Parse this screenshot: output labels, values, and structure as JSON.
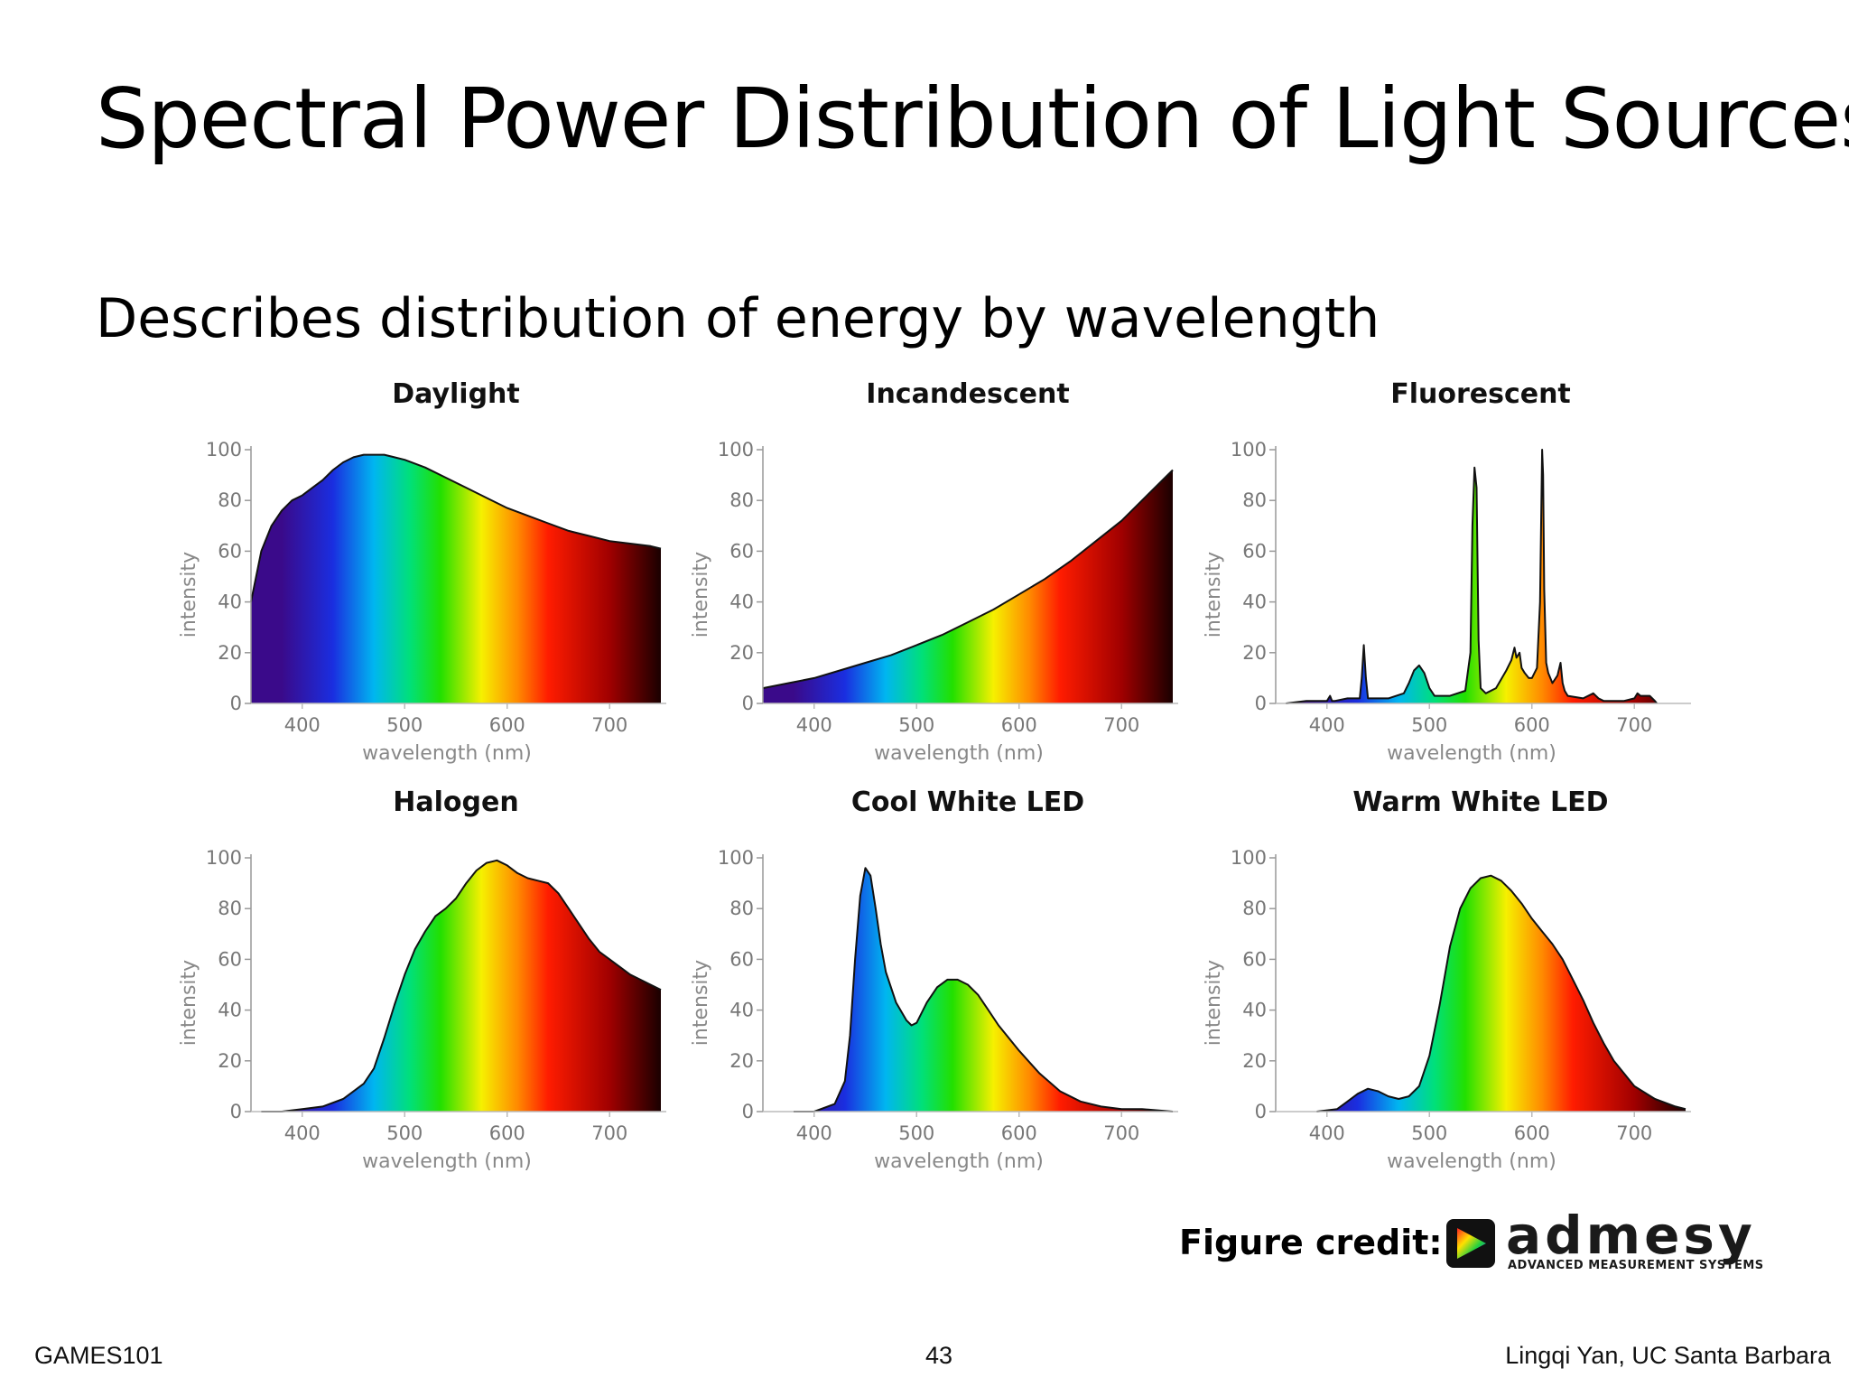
{
  "slide": {
    "title": "Spectral Power Distribution of Light Sources",
    "subtitle": "Describes distribution of energy by wavelength",
    "credit_label": "Figure credit:",
    "logo": {
      "word": "admesy",
      "tagline": "ADVANCED MEASUREMENT SYSTEMS"
    },
    "footer": {
      "left": "GAMES101",
      "center": "43",
      "right": "Lingqi Yan, UC Santa Barbara"
    }
  },
  "colors": {
    "spectrum": [
      "#3a0a8a",
      "#1a2ee0",
      "#00b6f0",
      "#00e07a",
      "#22e000",
      "#f6f000",
      "#ff8a00",
      "#ff1c00",
      "#a00000",
      "#1a0000"
    ],
    "outline": "#111111"
  },
  "chart_data": [
    {
      "type": "area",
      "title": "Daylight",
      "xlabel": "wavelength (nm)",
      "ylabel": "intensity",
      "xlim": [
        350,
        750
      ],
      "ylim": [
        0,
        100
      ],
      "xticks": [
        400,
        500,
        600,
        700
      ],
      "yticks": [
        0,
        20,
        40,
        60,
        80,
        100
      ],
      "x": [
        350,
        360,
        370,
        380,
        390,
        400,
        410,
        420,
        430,
        440,
        450,
        460,
        470,
        480,
        490,
        500,
        520,
        540,
        560,
        580,
        600,
        620,
        640,
        660,
        680,
        700,
        720,
        740,
        750
      ],
      "y": [
        40,
        60,
        70,
        76,
        80,
        82,
        85,
        88,
        92,
        95,
        97,
        98,
        98,
        98,
        97,
        96,
        93,
        89,
        85,
        81,
        77,
        74,
        71,
        68,
        66,
        64,
        63,
        62,
        61
      ]
    },
    {
      "type": "area",
      "title": "Incandescent",
      "xlabel": "wavelength (nm)",
      "ylabel": "intensity",
      "xlim": [
        350,
        750
      ],
      "ylim": [
        0,
        100
      ],
      "xticks": [
        400,
        500,
        600,
        700
      ],
      "yticks": [
        0,
        20,
        40,
        60,
        80,
        100
      ],
      "x": [
        350,
        375,
        400,
        425,
        450,
        475,
        500,
        525,
        550,
        575,
        600,
        625,
        650,
        675,
        700,
        725,
        750
      ],
      "y": [
        6,
        8,
        10,
        13,
        16,
        19,
        23,
        27,
        32,
        37,
        43,
        49,
        56,
        64,
        72,
        82,
        92
      ]
    },
    {
      "type": "area",
      "title": "Fluorescent",
      "xlabel": "wavelength (nm)",
      "ylabel": "intensity",
      "xlim": [
        350,
        750
      ],
      "ylim": [
        0,
        100
      ],
      "xticks": [
        400,
        500,
        600,
        700
      ],
      "yticks": [
        0,
        20,
        40,
        60,
        80,
        100
      ],
      "x": [
        360,
        380,
        400,
        403,
        405,
        408,
        420,
        432,
        434,
        436,
        438,
        440,
        460,
        475,
        480,
        485,
        490,
        495,
        500,
        505,
        520,
        535,
        540,
        542,
        544,
        546,
        548,
        550,
        555,
        565,
        575,
        580,
        583,
        585,
        588,
        590,
        593,
        597,
        600,
        605,
        608,
        610,
        611,
        612,
        614,
        616,
        620,
        625,
        628,
        630,
        632,
        635,
        650,
        660,
        665,
        670,
        690,
        700,
        703,
        706,
        710,
        715,
        720,
        722
      ],
      "y": [
        0,
        1,
        1,
        3,
        1,
        1,
        2,
        2,
        10,
        23,
        10,
        2,
        2,
        4,
        8,
        13,
        15,
        12,
        6,
        3,
        3,
        5,
        20,
        70,
        93,
        85,
        25,
        6,
        4,
        6,
        13,
        17,
        22,
        18,
        20,
        14,
        12,
        10,
        10,
        14,
        40,
        100,
        90,
        45,
        16,
        12,
        8,
        11,
        16,
        8,
        5,
        3,
        2,
        4,
        2,
        1,
        1,
        2,
        4,
        3,
        3,
        3,
        1,
        0
      ]
    },
    {
      "type": "area",
      "title": "Halogen",
      "xlabel": "wavelength (nm)",
      "ylabel": "intensity",
      "xlim": [
        350,
        750
      ],
      "ylim": [
        0,
        100
      ],
      "xticks": [
        400,
        500,
        600,
        700
      ],
      "yticks": [
        0,
        20,
        40,
        60,
        80,
        100
      ],
      "x": [
        360,
        380,
        400,
        420,
        440,
        460,
        470,
        480,
        490,
        500,
        510,
        520,
        530,
        540,
        550,
        560,
        570,
        580,
        590,
        600,
        610,
        620,
        630,
        640,
        650,
        660,
        670,
        680,
        690,
        700,
        710,
        720,
        730,
        740,
        750
      ],
      "y": [
        0,
        0,
        1,
        2,
        5,
        11,
        17,
        29,
        42,
        54,
        64,
        71,
        77,
        80,
        84,
        90,
        95,
        98,
        99,
        97,
        94,
        92,
        91,
        90,
        86,
        80,
        74,
        68,
        63,
        60,
        57,
        54,
        52,
        50,
        48
      ]
    },
    {
      "type": "area",
      "title": "Cool White LED",
      "xlabel": "wavelength (nm)",
      "ylabel": "intensity",
      "xlim": [
        350,
        750
      ],
      "ylim": [
        0,
        100
      ],
      "xticks": [
        400,
        500,
        600,
        700
      ],
      "yticks": [
        0,
        20,
        40,
        60,
        80,
        100
      ],
      "x": [
        380,
        400,
        420,
        430,
        435,
        440,
        445,
        450,
        455,
        460,
        465,
        470,
        480,
        490,
        495,
        500,
        510,
        520,
        530,
        540,
        550,
        560,
        570,
        580,
        600,
        620,
        640,
        660,
        680,
        700,
        720,
        750
      ],
      "y": [
        0,
        0,
        3,
        12,
        30,
        60,
        85,
        96,
        93,
        80,
        66,
        55,
        43,
        36,
        34,
        35,
        43,
        49,
        52,
        52,
        50,
        46,
        40,
        34,
        24,
        15,
        8,
        4,
        2,
        1,
        1,
        0
      ]
    },
    {
      "type": "area",
      "title": "Warm White LED",
      "xlabel": "wavelength (nm)",
      "ylabel": "intensity",
      "xlim": [
        350,
        750
      ],
      "ylim": [
        0,
        100
      ],
      "xticks": [
        400,
        500,
        600,
        700
      ],
      "yticks": [
        0,
        20,
        40,
        60,
        80,
        100
      ],
      "x": [
        390,
        410,
        420,
        430,
        440,
        450,
        460,
        470,
        480,
        490,
        500,
        510,
        520,
        530,
        540,
        550,
        560,
        570,
        580,
        590,
        600,
        610,
        620,
        630,
        640,
        650,
        660,
        670,
        680,
        700,
        720,
        740,
        750
      ],
      "y": [
        0,
        1,
        4,
        7,
        9,
        8,
        6,
        5,
        6,
        10,
        22,
        42,
        65,
        80,
        88,
        92,
        93,
        91,
        87,
        82,
        76,
        71,
        66,
        60,
        52,
        44,
        35,
        27,
        20,
        10,
        5,
        2,
        1
      ]
    }
  ]
}
